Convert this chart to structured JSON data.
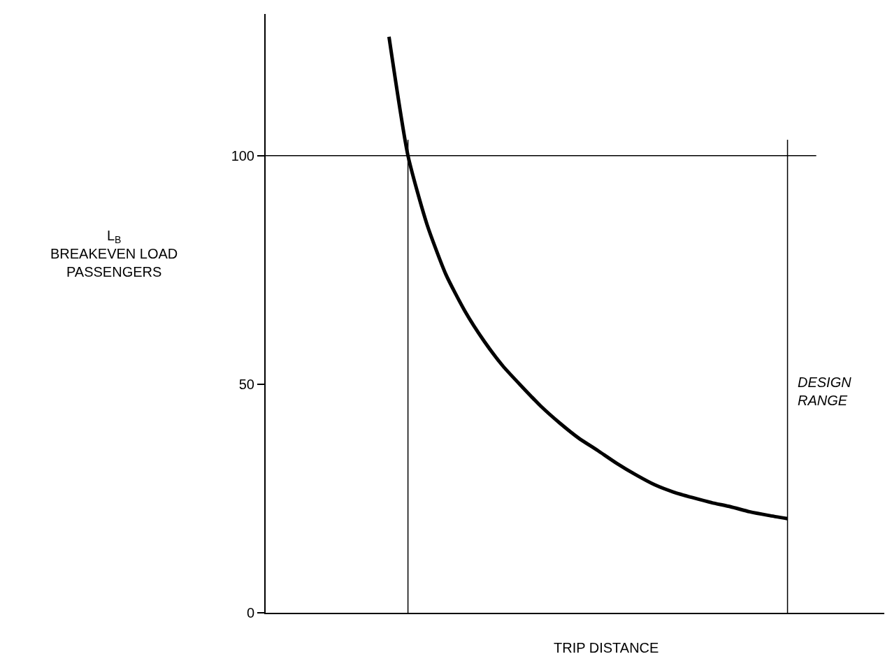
{
  "chart_data": {
    "type": "line",
    "xlabel": "TRIP DISTANCE",
    "ylabel": "L$_{B}$\nBREAKEVEN LOAD\nPASSENGERS",
    "categories": [
      null,
      null,
      null,
      null,
      null,
      null,
      null,
      null,
      null,
      null,
      null,
      null,
      null,
      null,
      null,
      null,
      null,
      null,
      null,
      null,
      null,
      null
    ],
    "series": [
      {
        "color": "#000000",
        "values": [
          126,
          100,
          85,
          74,
          66,
          59.5,
          54,
          49.5,
          45.2,
          41.5,
          38.2,
          35.5,
          32.7,
          30.2,
          28.0,
          26.4,
          25.2,
          24.1,
          23.2,
          22.1,
          21.3,
          20.6
        ]
      }
    ],
    "ylim": [
      0,
      131
    ],
    "yticks": [
      0,
      50,
      100
    ],
    "ref_lines": [
      {
        "axis": "y",
        "value": 100,
        "color": "#000000"
      }
    ],
    "annotations": [
      "DESIGN RANGE"
    ],
    "tick_labels": "y",
    "marker": "none",
    "line_style": "solid"
  }
}
